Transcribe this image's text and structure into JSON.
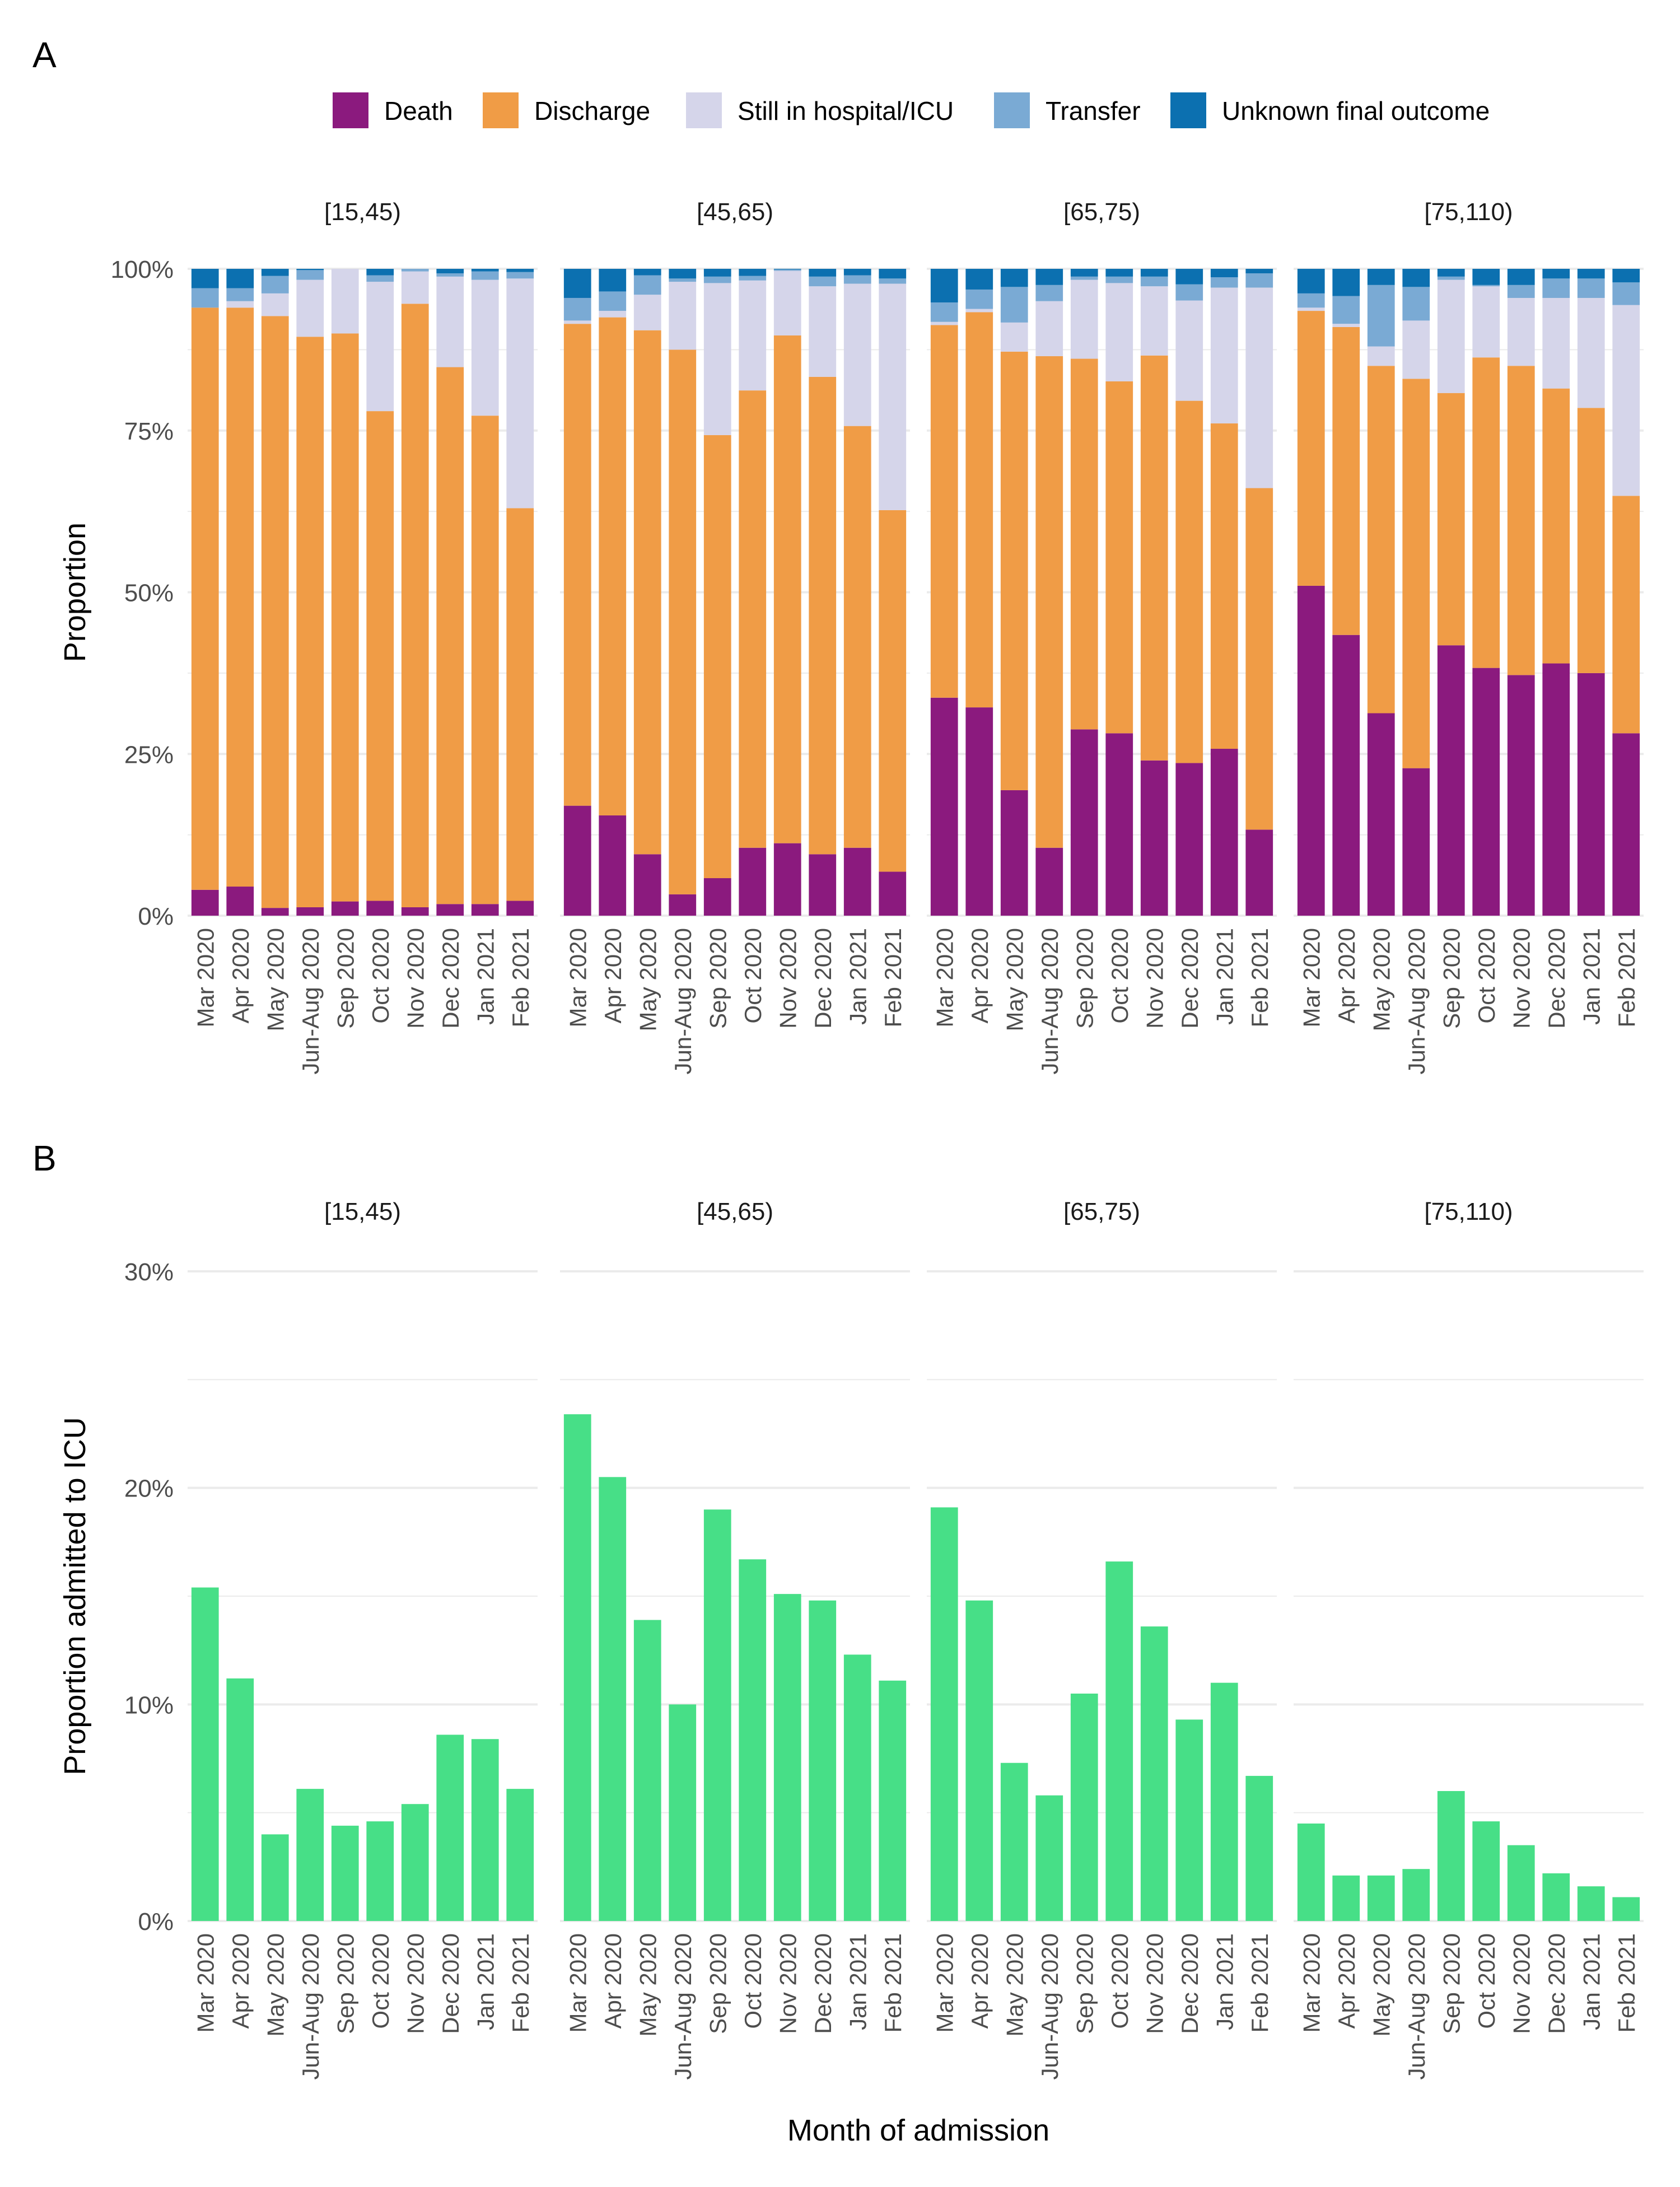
{
  "panel_labels": [
    "A",
    "B"
  ],
  "x_axis_title": "Month of admission",
  "colors": {
    "Death": "#8B1A7E",
    "Discharge": "#F09C46",
    "Still in hospital/ICU": "#D5D5EA",
    "Transfer": "#7AAAD4",
    "Unknown final outcome": "#0C70B0",
    "icu_bar": "#47DF87",
    "grid": "#EBEBEB",
    "axis_text": "#4D4D4D"
  },
  "chart_data": [
    {
      "type": "bar",
      "stacked": true,
      "panel": "A",
      "ylabel": "Proportion",
      "ylim": [
        0,
        1
      ],
      "yticks": [
        "0%",
        "25%",
        "50%",
        "75%",
        "100%"
      ],
      "legend": {
        "position": "top",
        "entries": [
          "Death",
          "Discharge",
          "Still in hospital/ICU",
          "Transfer",
          "Unknown final outcome"
        ]
      },
      "categories": [
        "Mar 2020",
        "Apr 2020",
        "May 2020",
        "Jun-Aug 2020",
        "Sep 2020",
        "Oct 2020",
        "Nov 2020",
        "Dec 2020",
        "Jan 2021",
        "Feb 2021"
      ],
      "facets": [
        {
          "label": "[15,45)",
          "series": [
            {
              "name": "Death",
              "values": [
                0.04,
                0.045,
                0.012,
                0.013,
                0.022,
                0.023,
                0.013,
                0.018,
                0.018,
                0.023
              ]
            },
            {
              "name": "Discharge",
              "values": [
                0.9,
                0.895,
                0.915,
                0.882,
                0.878,
                0.757,
                0.933,
                0.83,
                0.755,
                0.607
              ]
            },
            {
              "name": "Still in hospital/ICU",
              "values": [
                0.0,
                0.01,
                0.035,
                0.088,
                0.1,
                0.2,
                0.05,
                0.14,
                0.21,
                0.355
              ]
            },
            {
              "name": "Transfer",
              "values": [
                0.03,
                0.02,
                0.027,
                0.015,
                0.0,
                0.01,
                0.004,
                0.005,
                0.013,
                0.01
              ]
            },
            {
              "name": "Unknown final outcome",
              "values": [
                0.03,
                0.03,
                0.011,
                0.002,
                0.0,
                0.01,
                0.0,
                0.007,
                0.004,
                0.005
              ]
            }
          ]
        },
        {
          "label": "[45,65)",
          "series": [
            {
              "name": "Death",
              "values": [
                0.17,
                0.155,
                0.095,
                0.033,
                0.058,
                0.105,
                0.112,
                0.095,
                0.105,
                0.068
              ]
            },
            {
              "name": "Discharge",
              "values": [
                0.745,
                0.77,
                0.81,
                0.842,
                0.685,
                0.707,
                0.785,
                0.738,
                0.652,
                0.559
              ]
            },
            {
              "name": "Still in hospital/ICU",
              "values": [
                0.005,
                0.01,
                0.055,
                0.105,
                0.235,
                0.17,
                0.1,
                0.14,
                0.22,
                0.35
              ]
            },
            {
              "name": "Transfer",
              "values": [
                0.035,
                0.03,
                0.03,
                0.005,
                0.01,
                0.007,
                0.002,
                0.015,
                0.013,
                0.008
              ]
            },
            {
              "name": "Unknown final outcome",
              "values": [
                0.045,
                0.035,
                0.01,
                0.015,
                0.012,
                0.011,
                0.001,
                0.012,
                0.01,
                0.015
              ]
            }
          ]
        },
        {
          "label": "[65,75)",
          "series": [
            {
              "name": "Death",
              "values": [
                0.337,
                0.322,
                0.194,
                0.105,
                0.288,
                0.282,
                0.24,
                0.236,
                0.258,
                0.133
              ]
            },
            {
              "name": "Discharge",
              "values": [
                0.576,
                0.611,
                0.678,
                0.76,
                0.573,
                0.544,
                0.626,
                0.56,
                0.503,
                0.528
              ]
            },
            {
              "name": "Still in hospital/ICU",
              "values": [
                0.005,
                0.005,
                0.045,
                0.085,
                0.122,
                0.152,
                0.107,
                0.155,
                0.21,
                0.31
              ]
            },
            {
              "name": "Transfer",
              "values": [
                0.03,
                0.03,
                0.055,
                0.025,
                0.005,
                0.01,
                0.015,
                0.025,
                0.016,
                0.022
              ]
            },
            {
              "name": "Unknown final outcome",
              "values": [
                0.052,
                0.032,
                0.028,
                0.025,
                0.012,
                0.012,
                0.012,
                0.024,
                0.013,
                0.007
              ]
            }
          ]
        },
        {
          "label": "[75,110)",
          "series": [
            {
              "name": "Death",
              "values": [
                0.51,
                0.434,
                0.313,
                0.228,
                0.418,
                0.383,
                0.372,
                0.39,
                0.375,
                0.282
              ]
            },
            {
              "name": "Discharge",
              "values": [
                0.425,
                0.476,
                0.537,
                0.602,
                0.39,
                0.48,
                0.478,
                0.425,
                0.41,
                0.367
              ]
            },
            {
              "name": "Still in hospital/ICU",
              "values": [
                0.005,
                0.005,
                0.03,
                0.09,
                0.175,
                0.11,
                0.105,
                0.14,
                0.17,
                0.295
              ]
            },
            {
              "name": "Transfer",
              "values": [
                0.022,
                0.043,
                0.095,
                0.052,
                0.005,
                0.002,
                0.02,
                0.03,
                0.03,
                0.035
              ]
            },
            {
              "name": "Unknown final outcome",
              "values": [
                0.038,
                0.042,
                0.025,
                0.028,
                0.012,
                0.025,
                0.025,
                0.015,
                0.015,
                0.021
              ]
            }
          ]
        }
      ]
    },
    {
      "type": "bar",
      "panel": "B",
      "ylabel": "Proportion admitted to ICU",
      "xlabel": "Month of admission",
      "ylim": [
        0,
        0.3
      ],
      "yticks": [
        "0%",
        "10%",
        "20%",
        "30%"
      ],
      "categories": [
        "Mar 2020",
        "Apr 2020",
        "May 2020",
        "Jun-Aug 2020",
        "Sep 2020",
        "Oct 2020",
        "Nov 2020",
        "Dec 2020",
        "Jan 2021",
        "Feb 2021"
      ],
      "facets": [
        {
          "label": "[15,45)",
          "values": [
            0.154,
            0.112,
            0.04,
            0.061,
            0.044,
            0.046,
            0.054,
            0.086,
            0.084,
            0.061
          ]
        },
        {
          "label": "[45,65)",
          "values": [
            0.234,
            0.205,
            0.139,
            0.1,
            0.19,
            0.167,
            0.151,
            0.148,
            0.123,
            0.111
          ]
        },
        {
          "label": "[65,75)",
          "values": [
            0.191,
            0.148,
            0.073,
            0.058,
            0.105,
            0.166,
            0.136,
            0.093,
            0.11,
            0.067
          ]
        },
        {
          "label": "[75,110)",
          "values": [
            0.045,
            0.021,
            0.021,
            0.024,
            0.06,
            0.046,
            0.035,
            0.022,
            0.016,
            0.011
          ]
        }
      ]
    }
  ]
}
